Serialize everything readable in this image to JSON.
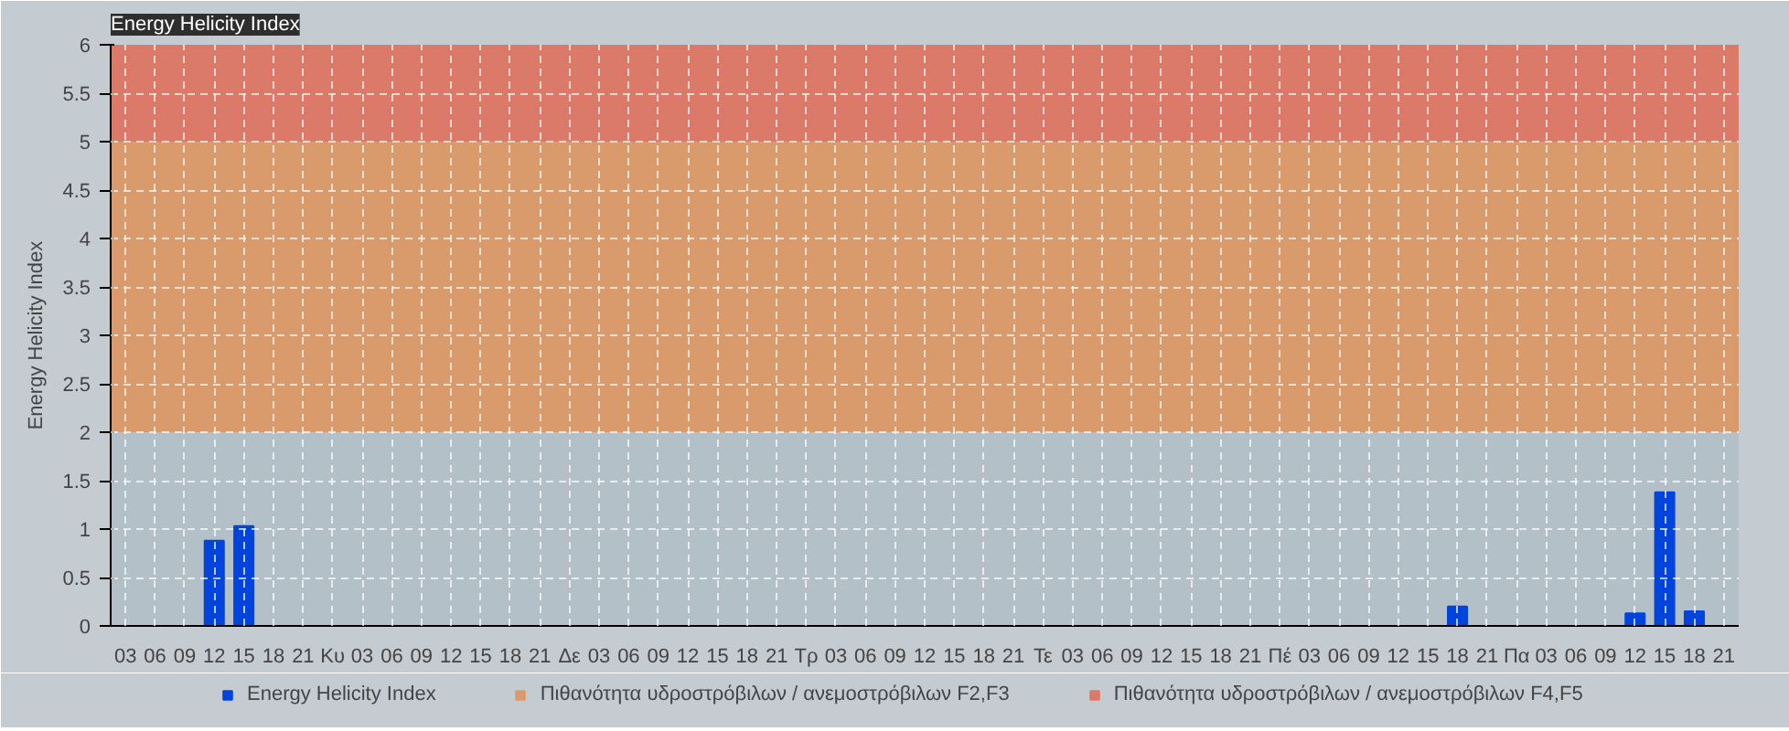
{
  "chart_data": {
    "type": "bar",
    "title": "Energy Helicity Index",
    "ylabel": "Energy Helicity Index",
    "categories": [
      "03",
      "06",
      "09",
      "12",
      "15",
      "18",
      "21",
      "Κυ",
      "03",
      "06",
      "09",
      "12",
      "15",
      "18",
      "21",
      "Δε",
      "03",
      "06",
      "09",
      "12",
      "15",
      "18",
      "21",
      "Τρ",
      "03",
      "06",
      "09",
      "12",
      "15",
      "18",
      "21",
      "Τε",
      "03",
      "06",
      "09",
      "12",
      "15",
      "18",
      "21",
      "Πέ",
      "03",
      "06",
      "09",
      "12",
      "15",
      "18",
      "21",
      "Πα",
      "03",
      "06",
      "09",
      "12",
      "15",
      "18",
      "21"
    ],
    "series": [
      {
        "name": "Energy Helicity Index",
        "color": "#0044dd",
        "values": [
          0,
          0,
          0,
          0.88,
          1.03,
          0,
          0,
          0,
          0,
          0,
          0,
          0,
          0,
          0,
          0,
          0,
          0,
          0,
          0,
          0,
          0,
          0,
          0,
          0,
          0,
          0,
          0,
          0,
          0,
          0,
          0,
          0,
          0,
          0,
          0,
          0,
          0,
          0,
          0,
          0,
          0,
          0,
          0,
          0,
          0,
          0.2,
          0,
          0,
          0,
          0,
          0,
          0.13,
          1.38,
          0.15,
          0
        ]
      }
    ],
    "ylim": [
      0,
      6
    ],
    "yticks": [
      0,
      0.5,
      1,
      1.5,
      2,
      2.5,
      3,
      3.5,
      4,
      4.5,
      5,
      5.5,
      6
    ],
    "bands": [
      {
        "axis": "y",
        "from": 0,
        "to": 2,
        "color": "#b4c0c8"
      },
      {
        "axis": "y",
        "from": 2,
        "to": 5,
        "color": "#d99a6c",
        "label": "Πιθανότητα υδροστρόβιλων / ανεμοστρόβιλων F2,F3"
      },
      {
        "axis": "y",
        "from": 5,
        "to": 6,
        "color": "#dc7a6a",
        "label": "Πιθανότητα υδροστρόβιλων / ανεμοστρόβιλων F4,F5"
      }
    ],
    "grid": true,
    "legend": "bottom left"
  }
}
